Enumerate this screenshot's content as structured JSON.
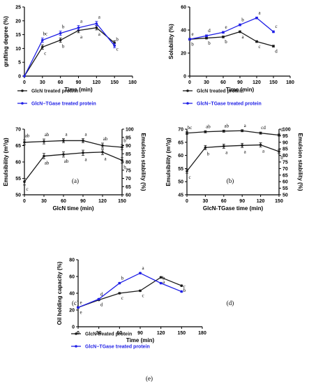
{
  "colors": {
    "black": "#1a1a1a",
    "blue": "#1f1fe6"
  },
  "chart_data": [
    {
      "id": "a",
      "type": "line",
      "caption": "(a)",
      "ylabel": "grafting degree (%)",
      "xlabel": "Time (min)",
      "xlim": [
        0,
        180
      ],
      "ylim": [
        0,
        25
      ],
      "xticks": [
        0,
        30,
        60,
        90,
        120,
        150,
        180
      ],
      "yticks": [
        0,
        5,
        10,
        15,
        20,
        25
      ],
      "x": [
        0,
        30,
        60,
        90,
        120,
        150
      ],
      "series": [
        {
          "name": "GlcN treated protein",
          "color": "#1a1a1a",
          "values": [
            0,
            10.5,
            13,
            16.5,
            17.5,
            12
          ],
          "err": [
            0,
            0.8,
            0.8,
            0.8,
            0.8,
            0.8
          ],
          "letters": [
            "",
            "c",
            "b",
            "a",
            "a",
            "c"
          ]
        },
        {
          "name": "GlcN−TGase treated protein",
          "color": "#1f1fe6",
          "values": [
            0,
            13,
            15.5,
            17.5,
            19,
            11
          ],
          "err": [
            0,
            0.8,
            0.8,
            0.8,
            0.8,
            0.8
          ],
          "letters": [
            "",
            "bc",
            "b",
            "a",
            "a",
            "b"
          ]
        }
      ],
      "legend": "bottom"
    },
    {
      "id": "b",
      "type": "line",
      "caption": "(b)",
      "ylabel": "Solubility (%)",
      "xlabel": "Time (min)",
      "xlim": [
        0,
        180
      ],
      "ylim": [
        0,
        60
      ],
      "xticks": [
        0,
        30,
        60,
        90,
        120,
        150,
        180
      ],
      "yticks": [
        0,
        20,
        40,
        60
      ],
      "x": [
        0,
        30,
        60,
        90,
        120,
        150
      ],
      "series": [
        {
          "name": "GlcN treated protein",
          "color": "#1a1a1a",
          "values": [
            32,
            33,
            34,
            38.5,
            30,
            26
          ],
          "err": [
            0.8,
            0.8,
            0.8,
            0.8,
            0.8,
            0.8
          ],
          "letters": [
            "b",
            "b",
            "b",
            "a",
            "c",
            "d"
          ]
        },
        {
          "name": "GlcN−TGase treated protein",
          "color": "#1f1fe6",
          "values": [
            32,
            35,
            38,
            44.5,
            50.5,
            38.5
          ],
          "err": [
            0.8,
            0.8,
            0.8,
            0.8,
            0.8,
            0.8
          ],
          "letters": [
            "e",
            "d",
            "e",
            "b",
            "a",
            "c"
          ]
        }
      ],
      "legend": "bottom"
    },
    {
      "id": "c",
      "type": "line",
      "caption": "(c)",
      "ylabel": "Emulsibility (m²/g)",
      "y2label": "Emulsion stability (%)",
      "xlabel": "GlcN time (min)",
      "xlim": [
        0,
        150
      ],
      "ylim": [
        50,
        70
      ],
      "y2lim": [
        60,
        100
      ],
      "xticks": [
        0,
        30,
        60,
        90,
        120,
        150
      ],
      "yticks": [
        50,
        55,
        60,
        65,
        70
      ],
      "y2ticks": [
        60,
        65,
        70,
        75,
        80,
        85,
        90,
        95,
        100
      ],
      "x": [
        0,
        30,
        60,
        90,
        120,
        150
      ],
      "series": [
        {
          "name": "Emulsibility",
          "color": "#1a1a1a",
          "axis": "left",
          "values": [
            54,
            61.8,
            62.3,
            62.8,
            63,
            60.5
          ],
          "err": [
            1,
            0.8,
            0.8,
            0.8,
            0.8,
            0.8
          ],
          "letters": [
            "c",
            "ab",
            "ab",
            "a",
            "a",
            "b"
          ]
        },
        {
          "name": "Emulsion stability",
          "color": "#1a1a1a",
          "axis": "right",
          "values": [
            92,
            92.5,
            93,
            93,
            90,
            89
          ],
          "err": [
            1.5,
            1.5,
            1.2,
            1.2,
            1.5,
            1.5
          ],
          "letters": [
            "ab",
            "ab",
            "a",
            "a",
            "ab",
            "b"
          ]
        }
      ]
    },
    {
      "id": "d",
      "type": "line",
      "caption": "(d)",
      "ylabel": "Emulsibility (m²/g)",
      "y2label": "Emulsion stability (%)",
      "xlabel": "GlcN-TGase time (min)",
      "xlim": [
        0,
        150
      ],
      "ylim": [
        45,
        70
      ],
      "y2lim": [
        50,
        100
      ],
      "xticks": [
        0,
        30,
        60,
        90,
        120,
        150
      ],
      "yticks": [
        45,
        50,
        55,
        60,
        65,
        70
      ],
      "y2ticks": [
        50,
        55,
        60,
        65,
        70,
        75,
        80,
        85,
        90,
        95,
        100
      ],
      "x": [
        0,
        30,
        60,
        90,
        120,
        150
      ],
      "series": [
        {
          "name": "Emulsibility",
          "color": "#1a1a1a",
          "axis": "left",
          "values": [
            54,
            63,
            63.5,
            63.8,
            64,
            61.5
          ],
          "err": [
            0.8,
            0.8,
            0.8,
            0.8,
            0.8,
            0.8
          ],
          "letters": [
            "c",
            "b",
            "a",
            "a",
            "a",
            "b"
          ]
        },
        {
          "name": "Emulsion stability",
          "color": "#1a1a1a",
          "axis": "right",
          "values": [
            97,
            98,
            98.5,
            98.8,
            97,
            95.5
          ],
          "err": [
            1,
            0.8,
            0.8,
            0.8,
            0.8,
            0.8
          ],
          "letters": [
            "bc",
            "ab",
            "ab",
            "a",
            "cd",
            "d"
          ]
        }
      ]
    },
    {
      "id": "e",
      "type": "line",
      "caption": "(e)",
      "ylabel": "Oil holding capacity (%)",
      "xlabel": "Time (min)",
      "xlim": [
        0,
        180
      ],
      "ylim": [
        0,
        80
      ],
      "xticks": [
        0,
        30,
        60,
        90,
        120,
        150,
        180
      ],
      "yticks": [
        0,
        20,
        40,
        60,
        80
      ],
      "x": [
        0,
        30,
        60,
        90,
        120,
        150
      ],
      "series": [
        {
          "name": "GlcN treated protein",
          "color": "#1a1a1a",
          "values": [
            23,
            32,
            40,
            43,
            59,
            49
          ],
          "err": [
            0.8,
            0.8,
            0.8,
            0.8,
            0.8,
            0.8
          ],
          "letters": [
            "e",
            "d",
            "c",
            "c",
            "a",
            "b"
          ]
        },
        {
          "name": "GlcN−TGase treated protein",
          "color": "#1f1fe6",
          "values": [
            23,
            33,
            52,
            64,
            52,
            42
          ],
          "err": [
            0.8,
            0.8,
            0.8,
            0.8,
            0.8,
            0.8
          ],
          "letters": [
            "e",
            "d",
            "b",
            "a",
            "b",
            "c"
          ]
        }
      ],
      "legend": "bottom"
    }
  ]
}
